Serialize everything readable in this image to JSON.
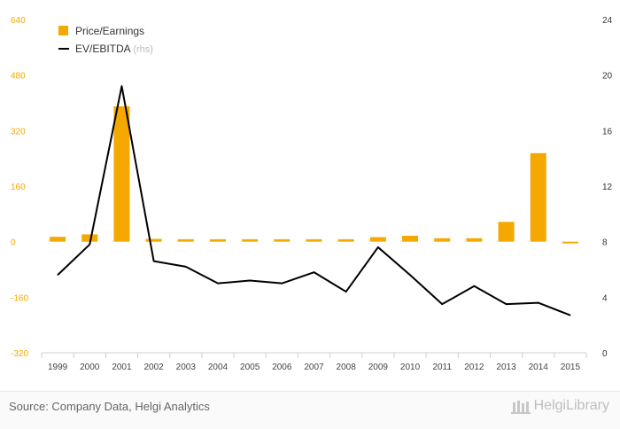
{
  "chart_data": {
    "type": "bar+line",
    "categories": [
      "1999",
      "2000",
      "2001",
      "2002",
      "2003",
      "2004",
      "2005",
      "2006",
      "2007",
      "2008",
      "2009",
      "2010",
      "2011",
      "2012",
      "2013",
      "2014",
      "2015"
    ],
    "series": [
      {
        "name": "Price/Earnings",
        "type": "bar",
        "axis": "left",
        "color": "#f5a800",
        "values": [
          14,
          21,
          390,
          8,
          7,
          7,
          7,
          7,
          7,
          7,
          13,
          17,
          10,
          10,
          57,
          255,
          -5
        ]
      },
      {
        "name": "EV/EBITDA",
        "axis_note": "(rhs)",
        "type": "line",
        "axis": "right",
        "color": "#000000",
        "values": [
          5.6,
          7.8,
          19.2,
          6.6,
          6.2,
          5.0,
          5.2,
          5.0,
          5.8,
          4.4,
          7.6,
          5.6,
          3.5,
          4.8,
          3.5,
          3.6,
          2.7
        ]
      }
    ],
    "left_axis": {
      "ylim": [
        -320,
        640
      ],
      "ticks": [
        640,
        480,
        320,
        160,
        0,
        -160,
        -320
      ],
      "color": "#f5a800"
    },
    "right_axis": {
      "ylim": [
        0,
        24
      ],
      "ticks": [
        24,
        20,
        16,
        12,
        8,
        4,
        0
      ]
    },
    "grid": false,
    "legend": "top-left"
  },
  "footer": {
    "source": "Source: Company Data, Helgi Analytics",
    "logo": "HelgiLibrary"
  }
}
